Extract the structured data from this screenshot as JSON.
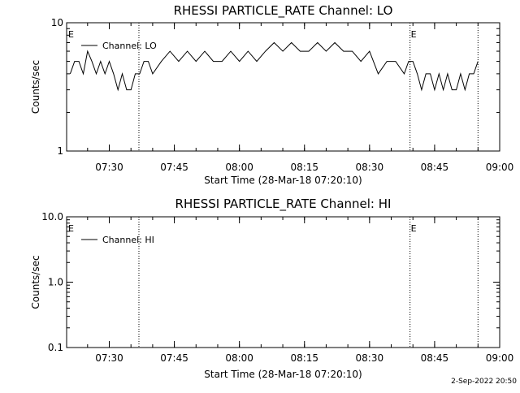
{
  "chart_data": [
    {
      "type": "line",
      "title": "RHESSI PARTICLE_RATE Channel: LO",
      "xlabel": "Start Time (28-Mar-18 07:20:10)",
      "ylabel": "Counts/sec",
      "yscale": "log",
      "ylim": [
        1,
        10
      ],
      "xlim": [
        "07:20:10",
        "09:00:00"
      ],
      "yticks": [
        "1",
        "10"
      ],
      "xticks": [
        "07:30",
        "07:45",
        "08:00",
        "08:15",
        "08:30",
        "08:45",
        "09:00"
      ],
      "legend": "Channel: LO",
      "legend_position": "top-left",
      "marker_label": "E",
      "event_lines": [
        "07:36:50",
        "08:39:20",
        "08:55:00"
      ],
      "series": [
        {
          "name": "Channel: LO",
          "x": [
            "07:21:00",
            "07:22:00",
            "07:23:00",
            "07:24:00",
            "07:25:00",
            "07:26:00",
            "07:27:00",
            "07:28:00",
            "07:29:00",
            "07:30:00",
            "07:31:00",
            "07:32:00",
            "07:33:00",
            "07:34:00",
            "07:35:00",
            "07:36:00",
            "07:37:00",
            "07:38:00",
            "07:39:00",
            "07:40:00",
            "07:42:00",
            "07:44:00",
            "07:46:00",
            "07:48:00",
            "07:50:00",
            "07:52:00",
            "07:54:00",
            "07:56:00",
            "07:58:00",
            "08:00:00",
            "08:02:00",
            "08:04:00",
            "08:06:00",
            "08:08:00",
            "08:10:00",
            "08:12:00",
            "08:14:00",
            "08:16:00",
            "08:18:00",
            "08:20:00",
            "08:22:00",
            "08:24:00",
            "08:26:00",
            "08:28:00",
            "08:30:00",
            "08:32:00",
            "08:34:00",
            "08:36:00",
            "08:38:00",
            "08:39:00",
            "08:40:00",
            "08:41:00",
            "08:42:00",
            "08:43:00",
            "08:44:00",
            "08:45:00",
            "08:46:00",
            "08:47:00",
            "08:48:00",
            "08:49:00",
            "08:50:00",
            "08:51:00",
            "08:52:00",
            "08:53:00",
            "08:54:00",
            "08:55:00"
          ],
          "values": [
            4,
            5,
            5,
            4,
            6,
            5,
            4,
            5,
            4,
            5,
            4,
            3,
            4,
            3,
            3,
            4,
            4,
            5,
            5,
            4,
            5,
            6,
            5,
            6,
            5,
            6,
            5,
            5,
            6,
            5,
            6,
            5,
            6,
            7,
            6,
            7,
            6,
            6,
            7,
            6,
            7,
            6,
            6,
            5,
            6,
            4,
            5,
            5,
            4,
            5,
            5,
            4,
            3,
            4,
            4,
            3,
            4,
            3,
            4,
            3,
            3,
            4,
            3,
            4,
            4,
            5
          ]
        }
      ]
    },
    {
      "type": "line",
      "title": "RHESSI PARTICLE_RATE Channel: HI",
      "xlabel": "Start Time (28-Mar-18 07:20:10)",
      "ylabel": "Counts/sec",
      "yscale": "log",
      "ylim": [
        0.1,
        10
      ],
      "xlim": [
        "07:20:10",
        "09:00:00"
      ],
      "yticks": [
        "0.1",
        "1.0",
        "10.0"
      ],
      "xticks": [
        "07:30",
        "07:45",
        "08:00",
        "08:15",
        "08:30",
        "08:45",
        "09:00"
      ],
      "legend": "Channel: HI",
      "legend_position": "top-left",
      "marker_label": "E",
      "event_lines": [
        "07:36:50",
        "08:39:20",
        "08:55:00"
      ],
      "series": [
        {
          "name": "Channel: HI",
          "x": [],
          "values": []
        }
      ]
    }
  ],
  "footer": "2-Sep-2022 20:50"
}
